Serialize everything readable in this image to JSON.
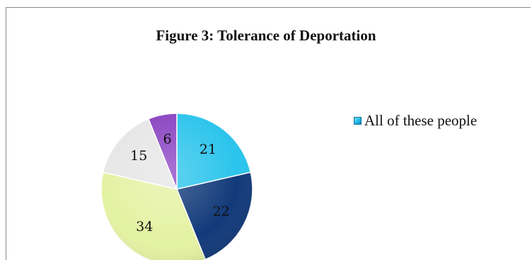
{
  "chart_data": {
    "type": "pie",
    "title": "Figure 3: Tolerance of Deportation",
    "slices": [
      {
        "label": "21",
        "value": 21,
        "color": "#2bc4ec",
        "text_color": "#111111"
      },
      {
        "label": "22",
        "value": 22,
        "color": "#123a7a",
        "text_color": "#111111"
      },
      {
        "label": "34",
        "value": 34,
        "color": "#e4f2a3",
        "text_color": "#111111"
      },
      {
        "label": "15",
        "value": 15,
        "color": "#e6e6e6",
        "text_color": "#111111"
      },
      {
        "label": "6",
        "value": 6,
        "color": "#8a44c2",
        "text_color": "#111111"
      }
    ],
    "legend": {
      "placement": "right",
      "entries": [
        "All of these people"
      ]
    },
    "start": "top",
    "direction": "clockwise"
  }
}
